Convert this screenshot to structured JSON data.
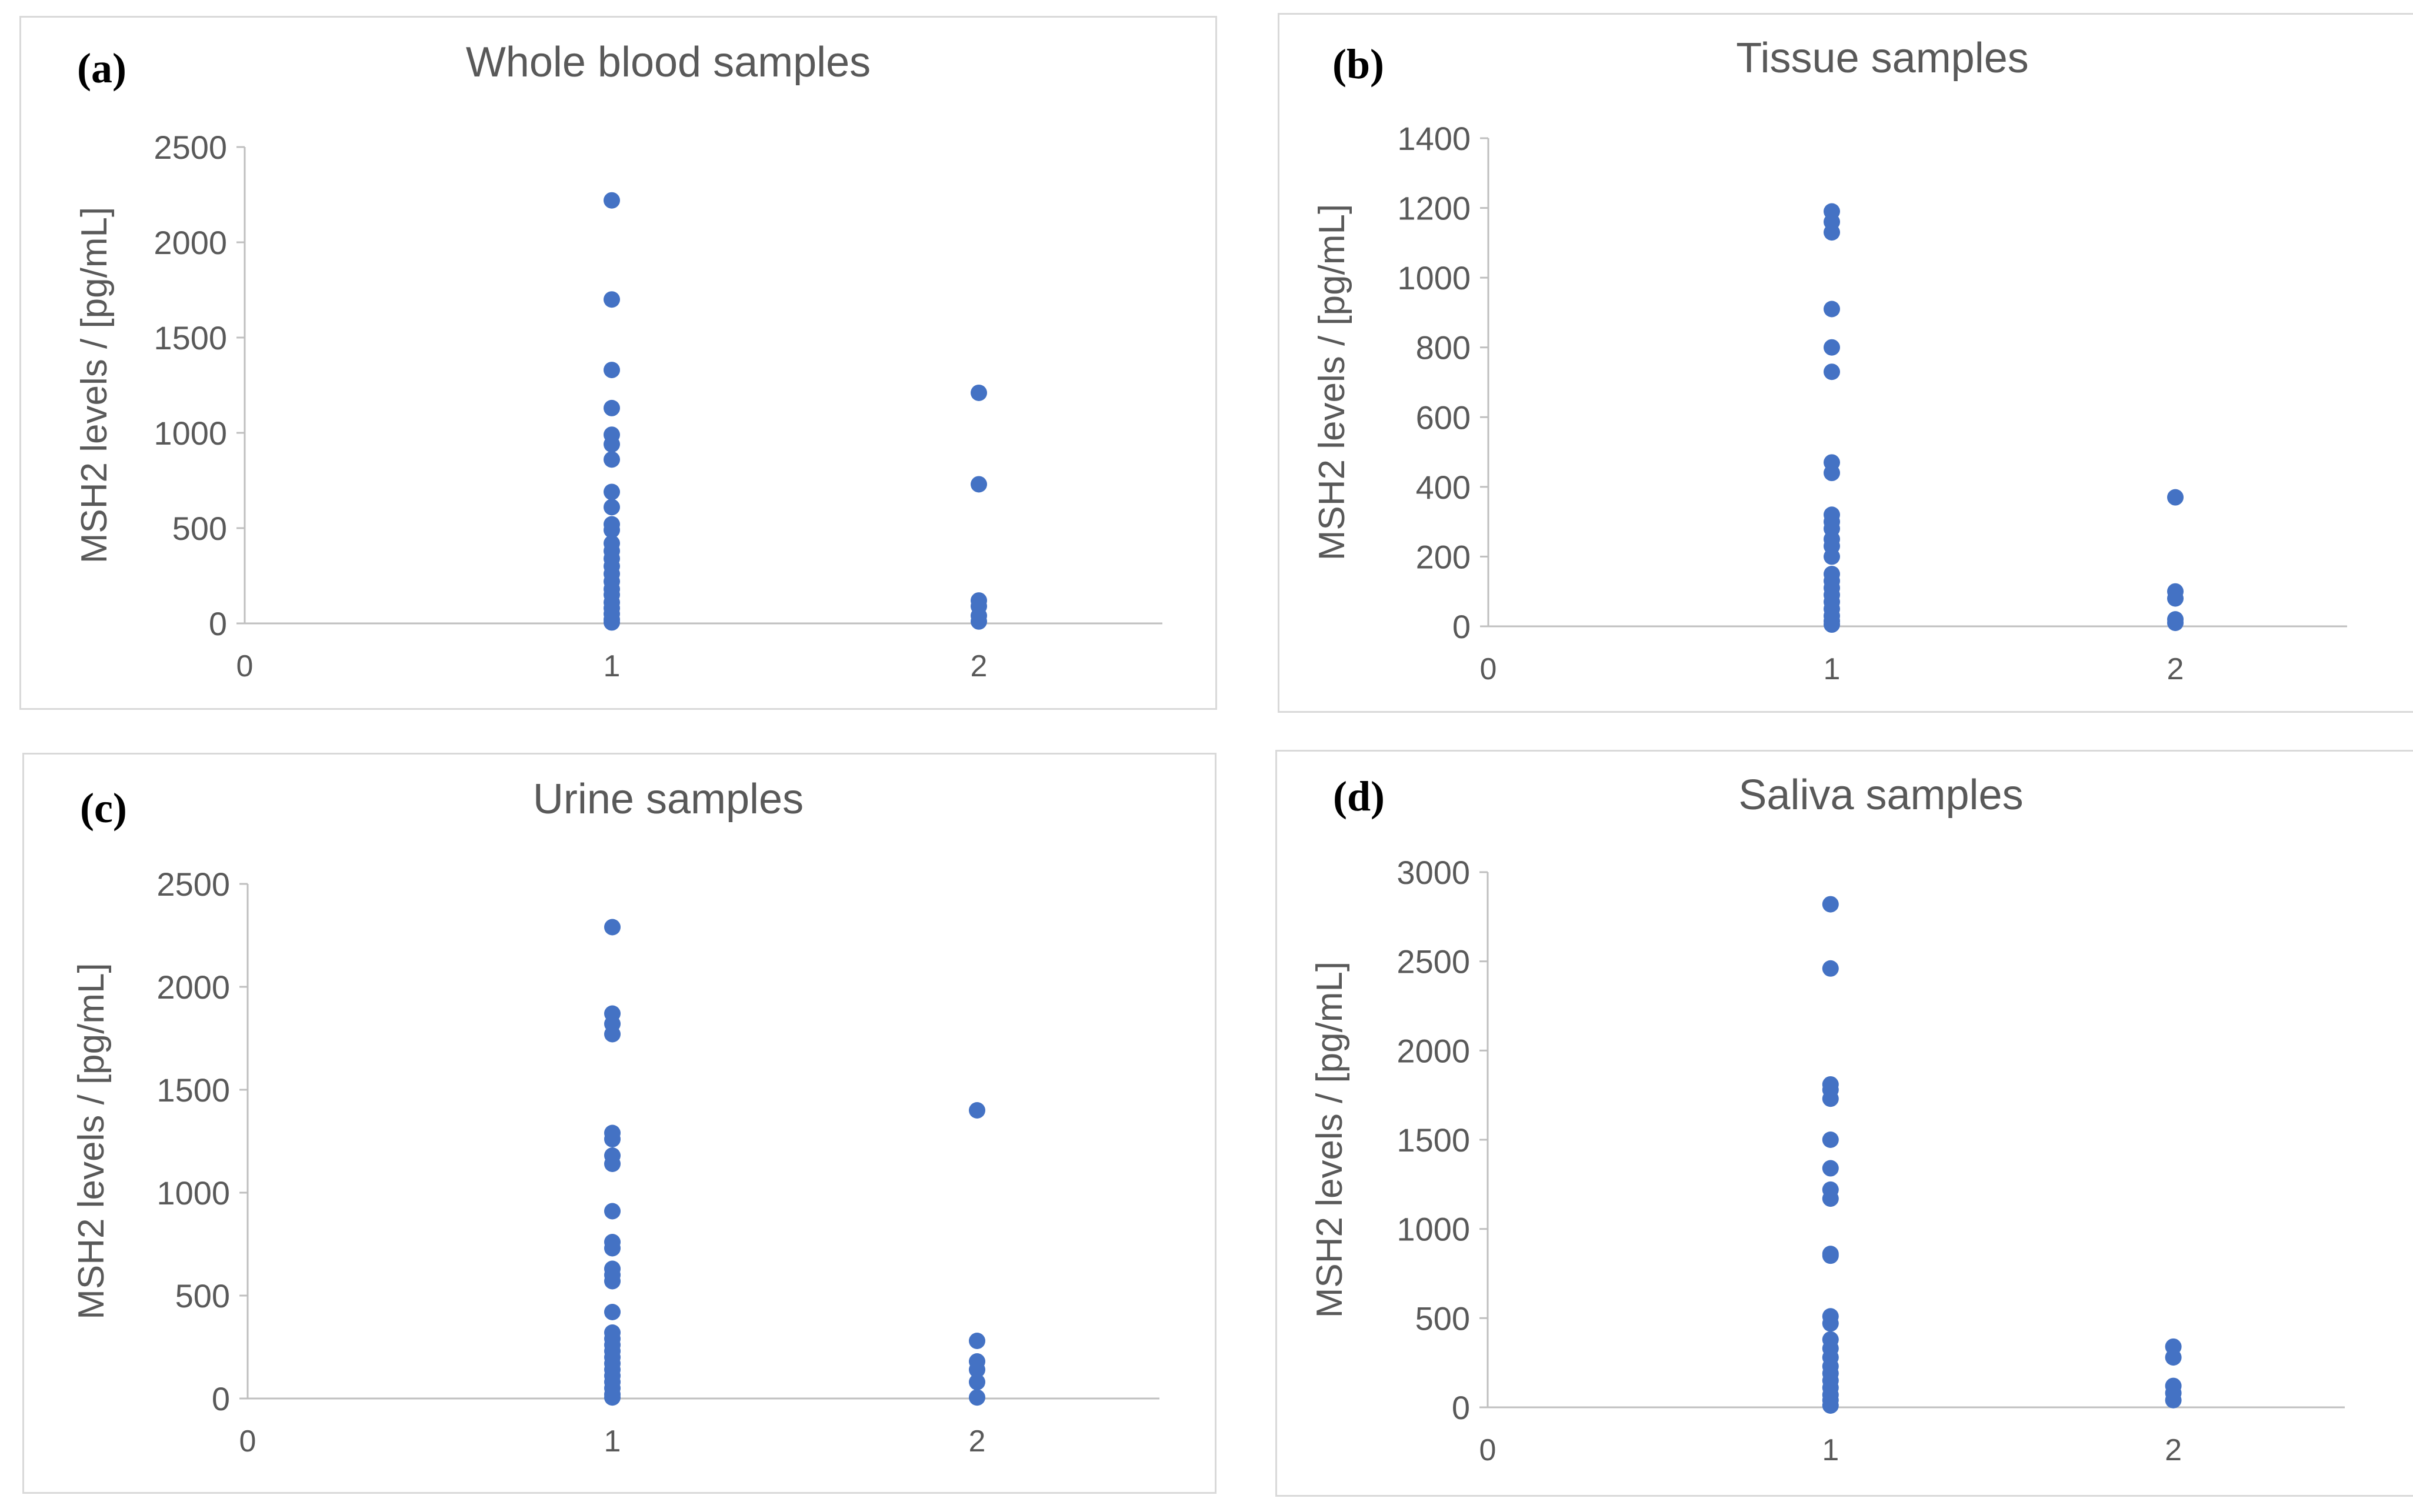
{
  "colors": {
    "marker": "#4472C4",
    "axis": "#bfbfbf",
    "text": "#595959",
    "label": "#000000"
  },
  "chart_data": [
    {
      "type": "scatter",
      "panel_label": "(a)",
      "title": "Whole blood samples",
      "xlabel": "",
      "ylabel": "MSH2 levels / [pg/mL]",
      "xlim": [
        0,
        2.5
      ],
      "ylim": [
        0,
        2500
      ],
      "xticks": [
        "0",
        "1",
        "2"
      ],
      "yticks": [
        "2500",
        "2000",
        "1500",
        "1000",
        "500",
        "0"
      ],
      "grid": false,
      "points": [
        [
          1,
          2220
        ],
        [
          1,
          1700
        ],
        [
          1,
          1330
        ],
        [
          1,
          1130
        ],
        [
          1,
          990
        ],
        [
          1,
          940
        ],
        [
          1,
          860
        ],
        [
          1,
          690
        ],
        [
          1,
          610
        ],
        [
          1,
          520
        ],
        [
          1,
          490
        ],
        [
          1,
          420
        ],
        [
          1,
          380
        ],
        [
          1,
          340
        ],
        [
          1,
          300
        ],
        [
          1,
          260
        ],
        [
          1,
          220
        ],
        [
          1,
          180
        ],
        [
          1,
          150
        ],
        [
          1,
          110
        ],
        [
          1,
          80
        ],
        [
          1,
          50
        ],
        [
          1,
          20
        ],
        [
          1,
          5
        ],
        [
          2,
          1210
        ],
        [
          2,
          730
        ],
        [
          2,
          120
        ],
        [
          2,
          90
        ],
        [
          2,
          40
        ],
        [
          2,
          10
        ]
      ]
    },
    {
      "type": "scatter",
      "panel_label": "(b)",
      "title": "Tissue samples",
      "xlabel": "",
      "ylabel": "MSH2 levels / [pg/mL]",
      "xlim": [
        0,
        2.5
      ],
      "ylim": [
        0,
        1400
      ],
      "xticks": [
        "0",
        "1",
        "2"
      ],
      "yticks": [
        "1400",
        "1200",
        "1000",
        "800",
        "600",
        "400",
        "200",
        "0"
      ],
      "grid": false,
      "points": [
        [
          1,
          1190
        ],
        [
          1,
          1160
        ],
        [
          1,
          1130
        ],
        [
          1,
          910
        ],
        [
          1,
          800
        ],
        [
          1,
          730
        ],
        [
          1,
          470
        ],
        [
          1,
          440
        ],
        [
          1,
          320
        ],
        [
          1,
          300
        ],
        [
          1,
          280
        ],
        [
          1,
          250
        ],
        [
          1,
          230
        ],
        [
          1,
          200
        ],
        [
          1,
          150
        ],
        [
          1,
          130
        ],
        [
          1,
          110
        ],
        [
          1,
          90
        ],
        [
          1,
          70
        ],
        [
          1,
          50
        ],
        [
          1,
          30
        ],
        [
          1,
          15
        ],
        [
          1,
          5
        ],
        [
          2,
          370
        ],
        [
          2,
          100
        ],
        [
          2,
          80
        ],
        [
          2,
          20
        ],
        [
          2,
          10
        ]
      ]
    },
    {
      "type": "scatter",
      "panel_label": "(c)",
      "title": "Urine samples",
      "xlabel": "",
      "ylabel": "MSH2 levels / [pg/mL]",
      "xlim": [
        0,
        2.5
      ],
      "ylim": [
        0,
        2500
      ],
      "xticks": [
        "0",
        "1",
        "2"
      ],
      "yticks": [
        "2500",
        "2000",
        "1500",
        "1000",
        "500",
        "0"
      ],
      "grid": false,
      "points": [
        [
          1,
          2290
        ],
        [
          1,
          1870
        ],
        [
          1,
          1820
        ],
        [
          1,
          1770
        ],
        [
          1,
          1290
        ],
        [
          1,
          1260
        ],
        [
          1,
          1180
        ],
        [
          1,
          1140
        ],
        [
          1,
          910
        ],
        [
          1,
          760
        ],
        [
          1,
          730
        ],
        [
          1,
          630
        ],
        [
          1,
          600
        ],
        [
          1,
          570
        ],
        [
          1,
          420
        ],
        [
          1,
          320
        ],
        [
          1,
          290
        ],
        [
          1,
          260
        ],
        [
          1,
          230
        ],
        [
          1,
          200
        ],
        [
          1,
          170
        ],
        [
          1,
          140
        ],
        [
          1,
          110
        ],
        [
          1,
          80
        ],
        [
          1,
          50
        ],
        [
          1,
          20
        ],
        [
          1,
          5
        ],
        [
          2,
          1400
        ],
        [
          2,
          280
        ],
        [
          2,
          180
        ],
        [
          2,
          140
        ],
        [
          2,
          80
        ],
        [
          2,
          5
        ]
      ]
    },
    {
      "type": "scatter",
      "panel_label": "(d)",
      "title": "Saliva samples",
      "xlabel": "",
      "ylabel": "MSH2 levels / [pg/mL]",
      "xlim": [
        0,
        2.5
      ],
      "ylim": [
        0,
        3000
      ],
      "xticks": [
        "0",
        "1",
        "2"
      ],
      "yticks": [
        "3000",
        "2500",
        "2000",
        "1500",
        "1000",
        "500",
        "0"
      ],
      "grid": false,
      "points": [
        [
          1,
          2820
        ],
        [
          1,
          2460
        ],
        [
          1,
          1810
        ],
        [
          1,
          1780
        ],
        [
          1,
          1730
        ],
        [
          1,
          1500
        ],
        [
          1,
          1340
        ],
        [
          1,
          1220
        ],
        [
          1,
          1170
        ],
        [
          1,
          860
        ],
        [
          1,
          850
        ],
        [
          1,
          510
        ],
        [
          1,
          470
        ],
        [
          1,
          380
        ],
        [
          1,
          330
        ],
        [
          1,
          280
        ],
        [
          1,
          230
        ],
        [
          1,
          190
        ],
        [
          1,
          150
        ],
        [
          1,
          110
        ],
        [
          1,
          70
        ],
        [
          1,
          40
        ],
        [
          1,
          10
        ],
        [
          2,
          340
        ],
        [
          2,
          280
        ],
        [
          2,
          120
        ],
        [
          2,
          80
        ],
        [
          2,
          40
        ]
      ]
    }
  ]
}
